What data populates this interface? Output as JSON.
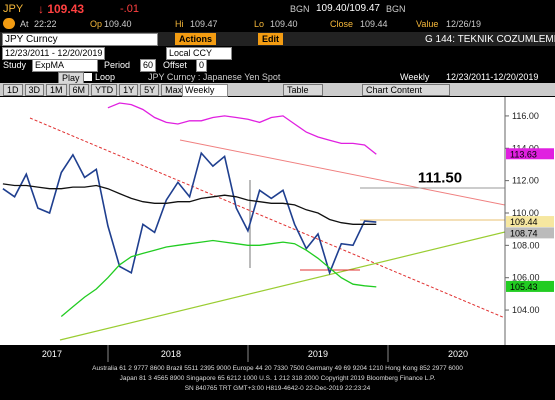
{
  "header": {
    "ticker": "JPY",
    "last": "↓ 109.43",
    "change": "-.01",
    "src1": "BGN",
    "bidask": "109.40/109.47",
    "src2": "BGN",
    "at_label": "At",
    "at": "22:22",
    "op_label": "Op",
    "op": "109.40",
    "hi_label": "Hi",
    "hi": "109.47",
    "lo_label": "Lo",
    "lo": "109.40",
    "close_label": "Close",
    "close": "109.44",
    "value_label": "Value",
    "value": "12/26/19"
  },
  "toolbar": {
    "security": "JPY Curncy",
    "actions": "Actions",
    "edit": "Edit",
    "page": "G 144: TEKNIK COZUMLEME-W1",
    "range": "12/23/2011 - 12/20/2019",
    "ccy": "Local CCY",
    "study_label": "Study",
    "study": "ExpMA",
    "period_label": "Period",
    "period": "60",
    "offset_label": "Offset",
    "offset": "0",
    "play": "Play",
    "loop": "Loop",
    "chart_title": "JPY Curncy : Japanese Yen Spot",
    "freq": "Weekly",
    "span": "12/23/2011-12/20/2019",
    "periods": [
      "1D",
      "3D",
      "1M",
      "6M",
      "YTD",
      "1Y",
      "5Y",
      "Max"
    ],
    "weekly": "Weekly",
    "table": "Table",
    "content": "Chart Content"
  },
  "chart_data": {
    "type": "line",
    "x": [
      2017.25,
      2017.333,
      2017.417,
      2017.5,
      2017.583,
      2017.667,
      2017.75,
      2017.833,
      2017.917,
      2018.0,
      2018.083,
      2018.167,
      2018.25,
      2018.333,
      2018.417,
      2018.5,
      2018.583,
      2018.667,
      2018.75,
      2018.833,
      2018.917,
      2019.0,
      2019.083,
      2019.167,
      2019.25,
      2019.333,
      2019.417,
      2019.5,
      2019.583,
      2019.667,
      2019.75,
      2019.833,
      2019.917
    ],
    "series": [
      {
        "name": "Price",
        "color": "#1f3f8f",
        "values": [
          111.5,
          111.0,
          112.4,
          110.3,
          110.0,
          112.5,
          113.6,
          112.2,
          112.7,
          109.2,
          106.7,
          106.3,
          109.3,
          108.8,
          110.8,
          111.9,
          111.0,
          113.7,
          112.9,
          113.5,
          110.3,
          108.9,
          111.4,
          110.9,
          111.4,
          109.3,
          107.8,
          108.7,
          106.3,
          108.1,
          108.0,
          109.5,
          109.44
        ]
      },
      {
        "name": "ExpMA",
        "color": "#111111",
        "values": [
          111.8,
          111.7,
          111.7,
          111.6,
          111.5,
          111.5,
          111.6,
          111.6,
          111.7,
          111.5,
          111.2,
          110.9,
          110.7,
          110.6,
          110.6,
          110.7,
          110.7,
          110.9,
          111.0,
          111.1,
          111.0,
          110.8,
          110.7,
          110.6,
          110.6,
          110.5,
          110.2,
          110.0,
          109.6,
          109.4,
          109.3,
          109.3,
          109.3
        ]
      },
      {
        "name": "Upper",
        "color": "#e020e0",
        "values": [
          null,
          null,
          null,
          null,
          null,
          null,
          null,
          null,
          null,
          116.5,
          116.8,
          116.7,
          116.4,
          115.9,
          115.6,
          115.5,
          115.7,
          115.7,
          115.9,
          116.0,
          115.9,
          115.8,
          115.6,
          115.9,
          116.0,
          115.5,
          115.0,
          114.7,
          114.5,
          114.3,
          114.3,
          114.2,
          113.63
        ]
      },
      {
        "name": "Lower",
        "color": "#22cc22",
        "values": [
          null,
          null,
          null,
          null,
          null,
          103.6,
          104.2,
          104.8,
          105.3,
          106.0,
          106.8,
          107.3,
          107.5,
          107.7,
          107.9,
          108.0,
          108.1,
          108.2,
          108.3,
          108.2,
          108.1,
          108.0,
          108.0,
          108.1,
          108.2,
          108.1,
          107.7,
          107.2,
          106.6,
          106.0,
          105.6,
          105.5,
          105.43
        ]
      }
    ],
    "xlim": [
      2017.229,
      2020.836
    ],
    "ylim": [
      101.84,
      117.17
    ],
    "xticks": [
      {
        "value": 2017.6,
        "label": "2017"
      },
      {
        "value": 2018.45,
        "label": "2018"
      },
      {
        "value": 2019.5,
        "label": "2019"
      },
      {
        "value": 2020.5,
        "label": "2020"
      }
    ],
    "yticks": [
      {
        "value": 104,
        "label": "104.00"
      },
      {
        "value": 106,
        "label": "106.00"
      },
      {
        "value": 108,
        "label": "108.00"
      },
      {
        "value": 110,
        "label": "110.00"
      },
      {
        "value": 112,
        "label": "112.00"
      },
      {
        "value": 114,
        "label": "114.00"
      },
      {
        "value": 116,
        "label": "116.00"
      }
    ],
    "tags": [
      {
        "value": 113.63,
        "color": "#e020e0"
      },
      {
        "value": 109.44,
        "color": "#f6e7a0"
      },
      {
        "value": 108.74,
        "color": "#bbbbbb"
      },
      {
        "value": 105.43,
        "color": "#22cc22"
      }
    ],
    "annotation": {
      "value": 111.5,
      "label": "111.50"
    }
  },
  "footer": [
    "Australia 61 2 9777 8600 Brazil 5511 2395 9000 Europe 44 20 7330 7500 Germany 49 69 9204 1210 Hong Kong 852 2977 6000",
    "Japan 81 3 4565 8900        Singapore 65 6212 1000        U.S. 1 212 318 2000        Copyright 2019 Bloomberg Finance L.P.",
    "SN 840765 TRT  GMT+3:00 H819-4642-0 22-Dec-2019 22:23:24"
  ]
}
